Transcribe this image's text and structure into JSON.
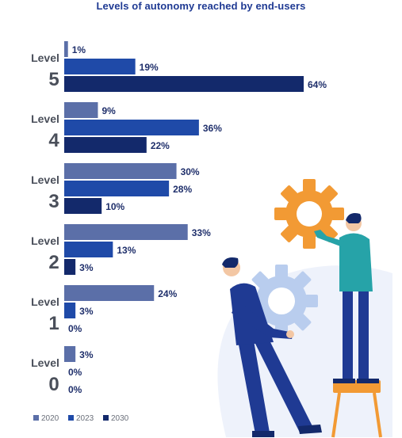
{
  "chart_data": {
    "type": "bar",
    "orientation": "horizontal",
    "title": "Levels of autonomy reached by end-users",
    "level_word": "Level",
    "categories": [
      "5",
      "4",
      "3",
      "2",
      "1",
      "0"
    ],
    "series": [
      {
        "name": "2020",
        "color": "#5b6fa8",
        "values": [
          1,
          9,
          30,
          33,
          24,
          3
        ]
      },
      {
        "name": "2023",
        "color": "#1f4aa8",
        "values": [
          19,
          36,
          28,
          13,
          3,
          0
        ]
      },
      {
        "name": "2030",
        "color": "#13296b",
        "values": [
          64,
          22,
          10,
          3,
          0,
          0
        ]
      }
    ],
    "value_suffix": "%",
    "xlim": [
      0,
      70
    ],
    "grid": false,
    "legend_position": "bottom-left"
  },
  "illustration": {
    "description_icons": [
      "gear-orange-icon",
      "gear-light-blue-icon",
      "person-holding-gear-icon",
      "person-on-stool-icon"
    ]
  }
}
